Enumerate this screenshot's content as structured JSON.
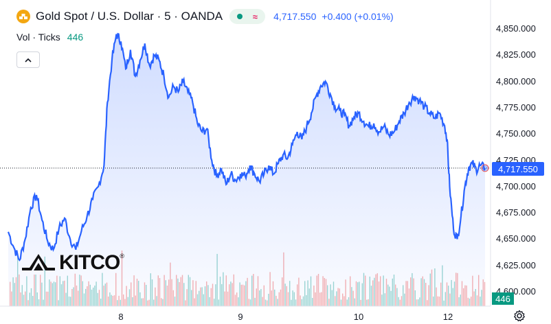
{
  "header": {
    "title": "Gold Spot / U.S. Dollar · 5 · OANDA",
    "last_price": "4,717.550",
    "change": "+0.400 (+0.01%)",
    "wave_symbol": "≈"
  },
  "volume_legend": {
    "label": "Vol · Ticks",
    "value": "446"
  },
  "collapse_icon": "chevron-up-icon",
  "watermark": {
    "text": "KITCO",
    "mark": "®"
  },
  "colors": {
    "line": "#2962ff",
    "fill": "#2962ff",
    "vol_up": "#26a69a",
    "vol_down": "#ef5350",
    "badge": "#2962ff",
    "vol_badge": "#089981",
    "pill_bg": "#e9f5ee"
  },
  "chart_data": {
    "type": "area",
    "y_axis_ticks": [
      "4,850.000",
      "4,825.000",
      "4,800.000",
      "4,775.000",
      "4,750.000",
      "4,725.000",
      "4,700.000",
      "4,675.000",
      "4,650.000",
      "4,625.000",
      "4,600.000"
    ],
    "x_axis_labels": [
      "8",
      "9",
      "10",
      "12"
    ],
    "ylim": [
      4595,
      4856
    ],
    "last_price_value": 4717.55,
    "last_price_label": "4,717.550",
    "volume_last_label": "446",
    "grid": false,
    "session_index": [
      0,
      1,
      2,
      3,
      4
    ],
    "price_points": [
      [
        0.0,
        4657
      ],
      [
        0.05,
        4642
      ],
      [
        0.1,
        4630
      ],
      [
        0.15,
        4650
      ],
      [
        0.2,
        4680
      ],
      [
        0.25,
        4692
      ],
      [
        0.3,
        4668
      ],
      [
        0.35,
        4648
      ],
      [
        0.4,
        4640
      ],
      [
        0.45,
        4660
      ],
      [
        0.5,
        4670
      ],
      [
        0.55,
        4650
      ],
      [
        0.6,
        4640
      ],
      [
        0.65,
        4658
      ],
      [
        0.7,
        4672
      ],
      [
        0.75,
        4688
      ],
      [
        0.8,
        4700
      ],
      [
        0.85,
        4720
      ],
      [
        0.88,
        4780
      ],
      [
        0.92,
        4820
      ],
      [
        0.96,
        4845
      ],
      [
        1.0,
        4838
      ],
      [
        1.04,
        4812
      ],
      [
        1.08,
        4830
      ],
      [
        1.12,
        4805
      ],
      [
        1.16,
        4820
      ],
      [
        1.2,
        4836
      ],
      [
        1.24,
        4815
      ],
      [
        1.28,
        4825
      ],
      [
        1.32,
        4820
      ],
      [
        1.36,
        4805
      ],
      [
        1.4,
        4785
      ],
      [
        1.44,
        4795
      ],
      [
        1.48,
        4790
      ],
      [
        1.52,
        4800
      ],
      [
        1.56,
        4790
      ],
      [
        1.6,
        4780
      ],
      [
        1.64,
        4760
      ],
      [
        1.68,
        4752
      ],
      [
        1.72,
        4755
      ],
      [
        1.76,
        4725
      ],
      [
        1.8,
        4710
      ],
      [
        1.84,
        4717
      ],
      [
        1.88,
        4702
      ],
      [
        1.92,
        4712
      ],
      [
        1.96,
        4706
      ],
      [
        2.0,
        4712
      ],
      [
        2.04,
        4710
      ],
      [
        2.08,
        4720
      ],
      [
        2.12,
        4712
      ],
      [
        2.16,
        4705
      ],
      [
        2.2,
        4712
      ],
      [
        2.24,
        4720
      ],
      [
        2.28,
        4712
      ],
      [
        2.32,
        4722
      ],
      [
        2.36,
        4730
      ],
      [
        2.4,
        4727
      ],
      [
        2.44,
        4740
      ],
      [
        2.48,
        4752
      ],
      [
        2.52,
        4745
      ],
      [
        2.56,
        4757
      ],
      [
        2.6,
        4770
      ],
      [
        2.64,
        4786
      ],
      [
        2.68,
        4796
      ],
      [
        2.72,
        4800
      ],
      [
        2.76,
        4788
      ],
      [
        2.8,
        4776
      ],
      [
        2.84,
        4772
      ],
      [
        2.88,
        4768
      ],
      [
        2.92,
        4758
      ],
      [
        2.96,
        4766
      ],
      [
        3.0,
        4770
      ],
      [
        3.04,
        4762
      ],
      [
        3.08,
        4757
      ],
      [
        3.12,
        4760
      ],
      [
        3.16,
        4752
      ],
      [
        3.2,
        4757
      ],
      [
        3.24,
        4749
      ],
      [
        3.28,
        4752
      ],
      [
        3.32,
        4762
      ],
      [
        3.36,
        4770
      ],
      [
        3.4,
        4780
      ],
      [
        3.44,
        4786
      ],
      [
        3.48,
        4782
      ],
      [
        3.52,
        4776
      ],
      [
        3.56,
        4770
      ],
      [
        3.6,
        4765
      ],
      [
        3.64,
        4770
      ],
      [
        3.68,
        4758
      ],
      [
        3.7,
        4745
      ],
      [
        3.72,
        4700
      ],
      [
        3.75,
        4660
      ],
      [
        3.78,
        4650
      ],
      [
        3.81,
        4672
      ],
      [
        3.84,
        4700
      ],
      [
        3.87,
        4718
      ],
      [
        3.9,
        4722
      ],
      [
        3.93,
        4716
      ],
      [
        3.96,
        4720
      ],
      [
        4.0,
        4717.55
      ]
    ]
  }
}
